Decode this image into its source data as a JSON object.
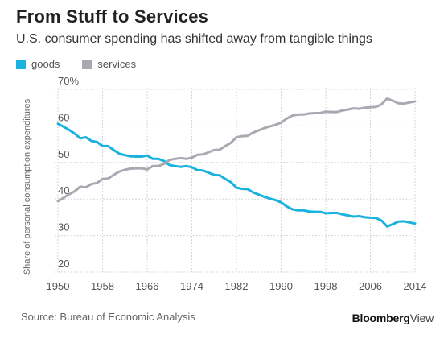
{
  "header": {
    "title": "From Stuff to Services",
    "subtitle": "U.S. consumer spending has shifted away from tangible things"
  },
  "footer": {
    "source": "Source: Bureau of Economic Analysis",
    "brand_a": "Bloomberg",
    "brand_b": "View"
  },
  "colors": {
    "goods": "#1ab2de",
    "services": "#a9a9b1",
    "grid": "#d6d6d6",
    "axis_text": "#555555"
  },
  "chart_data": {
    "type": "line",
    "title": "From Stuff to Services",
    "subtitle": "U.S. consumer spending has shifted away from tangible things",
    "xlabel": "",
    "ylabel": "Share of personal consumption expenditures",
    "xlim": [
      1950,
      2014
    ],
    "ylim": [
      20,
      70
    ],
    "x_ticks": [
      1950,
      1958,
      1966,
      1974,
      1982,
      1990,
      1998,
      2006,
      2014
    ],
    "y_ticks": [
      20,
      30,
      40,
      50,
      60,
      70
    ],
    "y_tick_labels": [
      "20",
      "30",
      "40",
      "50",
      "60",
      "70%"
    ],
    "grid": true,
    "legend": "top-left",
    "x": [
      1950,
      1951,
      1952,
      1953,
      1954,
      1955,
      1956,
      1957,
      1958,
      1959,
      1960,
      1961,
      1962,
      1963,
      1964,
      1965,
      1966,
      1967,
      1968,
      1969,
      1970,
      1971,
      1972,
      1973,
      1974,
      1975,
      1976,
      1977,
      1978,
      1979,
      1980,
      1981,
      1982,
      1983,
      1984,
      1985,
      1986,
      1987,
      1988,
      1989,
      1990,
      1991,
      1992,
      1993,
      1994,
      1995,
      1996,
      1997,
      1998,
      1999,
      2000,
      2001,
      2002,
      2003,
      2004,
      2005,
      2006,
      2007,
      2008,
      2009,
      2010,
      2011,
      2012,
      2013,
      2014
    ],
    "series": [
      {
        "name": "goods",
        "values": [
          60.6,
          59.8,
          58.9,
          57.9,
          56.6,
          56.9,
          55.9,
          55.6,
          54.5,
          54.5,
          53.4,
          52.4,
          52.0,
          51.7,
          51.6,
          51.6,
          51.9,
          51.0,
          51.0,
          50.4,
          49.3,
          49.0,
          48.8,
          49.0,
          48.7,
          47.9,
          47.8,
          47.2,
          46.6,
          46.5,
          45.5,
          44.6,
          43.1,
          42.8,
          42.7,
          41.8,
          41.2,
          40.6,
          40.1,
          39.7,
          39.1,
          38.0,
          37.2,
          36.9,
          36.9,
          36.6,
          36.5,
          36.5,
          36.1,
          36.2,
          36.2,
          35.8,
          35.5,
          35.2,
          35.3,
          35.0,
          34.9,
          34.8,
          34.1,
          32.5,
          33.1,
          33.8,
          33.9,
          33.6,
          33.3
        ]
      },
      {
        "name": "services",
        "values": [
          39.4,
          40.3,
          41.3,
          42.1,
          43.4,
          43.2,
          44.1,
          44.4,
          45.5,
          45.6,
          46.6,
          47.5,
          48.0,
          48.3,
          48.4,
          48.4,
          48.1,
          49.0,
          49.0,
          49.6,
          50.7,
          51.0,
          51.2,
          51.0,
          51.3,
          52.1,
          52.2,
          52.8,
          53.4,
          53.5,
          54.5,
          55.4,
          56.9,
          57.2,
          57.3,
          58.2,
          58.8,
          59.4,
          59.9,
          60.3,
          60.9,
          62.0,
          62.8,
          63.1,
          63.1,
          63.4,
          63.5,
          63.5,
          63.9,
          63.8,
          63.8,
          64.2,
          64.5,
          64.8,
          64.7,
          65.0,
          65.1,
          65.2,
          65.9,
          67.5,
          66.9,
          66.2,
          66.1,
          66.4,
          66.7
        ]
      }
    ]
  }
}
